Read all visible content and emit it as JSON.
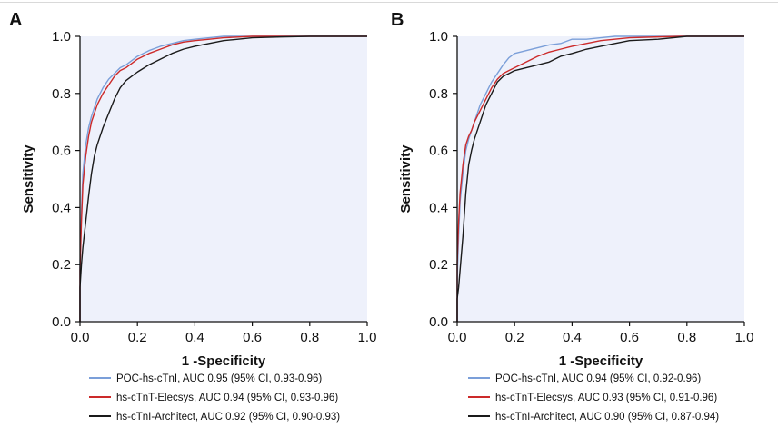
{
  "chart_data": [
    {
      "panel_label": "A",
      "type": "line",
      "xlabel": "1 -Specificity",
      "ylabel": "Sensitivity",
      "xlim": [
        0,
        1
      ],
      "ylim": [
        0,
        1
      ],
      "x_ticks": [
        "0.0",
        "0.2",
        "0.4",
        "0.6",
        "0.8",
        "1.0"
      ],
      "y_ticks": [
        "0.0",
        "0.2",
        "0.4",
        "0.6",
        "0.8",
        "1.0"
      ],
      "legend_position": "bottom",
      "series": [
        {
          "name": "POC-hs-cTnI, AUC 0.95 (95% CI, 0.93-0.96)",
          "color": "#7b9fd9",
          "x": [
            0,
            0,
            0.005,
            0.01,
            0.02,
            0.03,
            0.04,
            0.05,
            0.06,
            0.08,
            0.1,
            0.12,
            0.14,
            0.16,
            0.18,
            0.2,
            0.24,
            0.28,
            0.32,
            0.36,
            0.4,
            0.45,
            0.5,
            0.6,
            0.8,
            1.0
          ],
          "y": [
            0,
            0.2,
            0.38,
            0.52,
            0.62,
            0.68,
            0.72,
            0.75,
            0.78,
            0.82,
            0.85,
            0.87,
            0.89,
            0.9,
            0.915,
            0.93,
            0.95,
            0.965,
            0.975,
            0.985,
            0.99,
            0.995,
            1.0,
            1.0,
            1.0,
            1.0
          ]
        },
        {
          "name": "hs-cTnT-Elecsys, AUC 0.94 (95% CI, 0.93-0.96)",
          "color": "#cc2a2a",
          "x": [
            0,
            0,
            0.005,
            0.01,
            0.02,
            0.03,
            0.04,
            0.05,
            0.06,
            0.08,
            0.1,
            0.12,
            0.14,
            0.16,
            0.18,
            0.2,
            0.24,
            0.28,
            0.32,
            0.36,
            0.4,
            0.45,
            0.5,
            0.6,
            0.8,
            1.0
          ],
          "y": [
            0,
            0.18,
            0.35,
            0.48,
            0.58,
            0.65,
            0.7,
            0.73,
            0.76,
            0.8,
            0.83,
            0.86,
            0.88,
            0.89,
            0.905,
            0.92,
            0.94,
            0.955,
            0.97,
            0.98,
            0.985,
            0.99,
            0.995,
            1.0,
            1.0,
            1.0
          ]
        },
        {
          "name": "hs-cTnI-Architect, AUC 0.92 (95% CI, 0.90-0.93)",
          "color": "#1a1a1a",
          "x": [
            0,
            0,
            0.005,
            0.01,
            0.02,
            0.03,
            0.04,
            0.05,
            0.06,
            0.08,
            0.1,
            0.12,
            0.14,
            0.16,
            0.18,
            0.2,
            0.24,
            0.28,
            0.32,
            0.36,
            0.4,
            0.45,
            0.5,
            0.55,
            0.6,
            0.7,
            0.8,
            1.0
          ],
          "y": [
            0,
            0.12,
            0.2,
            0.26,
            0.35,
            0.44,
            0.52,
            0.58,
            0.62,
            0.68,
            0.73,
            0.78,
            0.82,
            0.845,
            0.86,
            0.875,
            0.9,
            0.92,
            0.94,
            0.955,
            0.965,
            0.975,
            0.985,
            0.99,
            0.995,
            0.998,
            1.0,
            1.0
          ]
        }
      ]
    },
    {
      "panel_label": "B",
      "type": "line",
      "xlabel": "1 -Specificity",
      "ylabel": "Sensitivity",
      "xlim": [
        0,
        1
      ],
      "ylim": [
        0,
        1
      ],
      "x_ticks": [
        "0.0",
        "0.2",
        "0.4",
        "0.6",
        "0.8",
        "1.0"
      ],
      "y_ticks": [
        "0.0",
        "0.2",
        "0.4",
        "0.6",
        "0.8",
        "1.0"
      ],
      "legend_position": "bottom",
      "series": [
        {
          "name": "POC-hs-cTnI, AUC 0.94 (95% CI, 0.92-0.96)",
          "color": "#7b9fd9",
          "x": [
            0,
            0,
            0.005,
            0.01,
            0.02,
            0.03,
            0.04,
            0.05,
            0.06,
            0.08,
            0.1,
            0.12,
            0.14,
            0.16,
            0.18,
            0.2,
            0.24,
            0.28,
            0.32,
            0.36,
            0.4,
            0.45,
            0.5,
            0.55,
            0.6,
            0.8,
            1.0
          ],
          "y": [
            0,
            0.15,
            0.3,
            0.42,
            0.52,
            0.6,
            0.64,
            0.67,
            0.7,
            0.76,
            0.8,
            0.84,
            0.87,
            0.9,
            0.925,
            0.94,
            0.95,
            0.96,
            0.97,
            0.975,
            0.99,
            0.99,
            0.995,
            1.0,
            1.0,
            1.0,
            1.0
          ]
        },
        {
          "name": "hs-cTnT-Elecsys, AUC 0.93 (95% CI, 0.91-0.96)",
          "color": "#cc2a2a",
          "x": [
            0,
            0,
            0.005,
            0.01,
            0.02,
            0.03,
            0.04,
            0.05,
            0.06,
            0.08,
            0.1,
            0.12,
            0.14,
            0.16,
            0.18,
            0.2,
            0.24,
            0.28,
            0.32,
            0.36,
            0.4,
            0.45,
            0.5,
            0.6,
            0.7,
            0.78,
            1.0
          ],
          "y": [
            0,
            0.2,
            0.35,
            0.45,
            0.55,
            0.62,
            0.65,
            0.67,
            0.7,
            0.74,
            0.78,
            0.82,
            0.85,
            0.87,
            0.88,
            0.89,
            0.91,
            0.93,
            0.945,
            0.955,
            0.965,
            0.975,
            0.985,
            0.995,
            0.998,
            1.0,
            1.0
          ]
        },
        {
          "name": "hs-cTnI-Architect, AUC 0.90 (95% CI, 0.87-0.94)",
          "color": "#1a1a1a",
          "x": [
            0,
            0,
            0.005,
            0.01,
            0.02,
            0.03,
            0.04,
            0.05,
            0.06,
            0.08,
            0.1,
            0.12,
            0.14,
            0.16,
            0.18,
            0.2,
            0.24,
            0.28,
            0.32,
            0.36,
            0.4,
            0.45,
            0.5,
            0.55,
            0.6,
            0.7,
            0.8,
            1.0
          ],
          "y": [
            0,
            0.08,
            0.12,
            0.18,
            0.3,
            0.45,
            0.55,
            0.6,
            0.64,
            0.7,
            0.76,
            0.8,
            0.84,
            0.86,
            0.87,
            0.88,
            0.89,
            0.9,
            0.91,
            0.93,
            0.94,
            0.955,
            0.965,
            0.975,
            0.985,
            0.99,
            1.0,
            1.0
          ]
        }
      ]
    }
  ]
}
